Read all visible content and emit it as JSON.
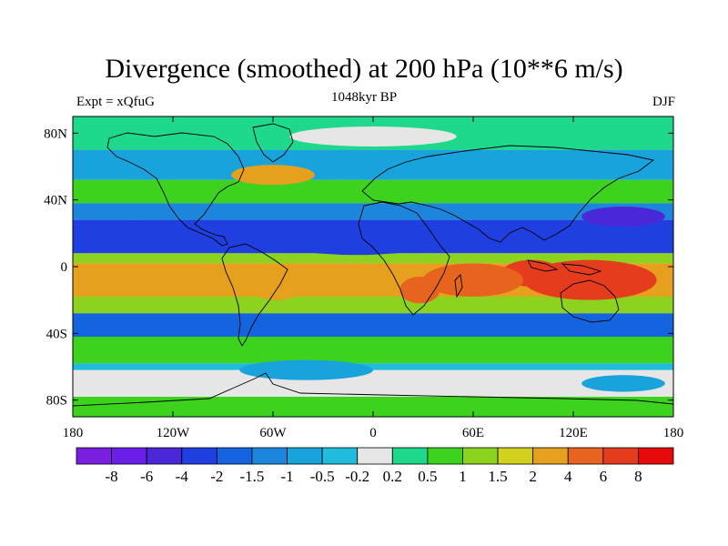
{
  "chart_data": {
    "type": "heatmap",
    "title": "Divergence (smoothed) at 200 hPa (10**6 m/s)",
    "subtitle_left": "Expt = xQfuG",
    "subtitle_center": "1048kyr BP",
    "subtitle_right": "DJF",
    "x_ticks": [
      "180",
      "120W",
      "60W",
      "0",
      "60E",
      "120E",
      "180"
    ],
    "y_ticks": [
      "80N",
      "40N",
      "0",
      "40S",
      "80S"
    ],
    "x_range": [
      -180,
      180
    ],
    "y_range": [
      -90,
      90
    ],
    "colorbar_labels": [
      "-8",
      "-6",
      "-4",
      "-2",
      "-1.5",
      "-1",
      "-0.5",
      "-0.2",
      "0.2",
      "0.5",
      "1",
      "1.5",
      "2",
      "4",
      "6",
      "8"
    ],
    "colorbar_colors": [
      "#7a1ee0",
      "#6a1ee8",
      "#4a28d8",
      "#1f3fe0",
      "#1464e0",
      "#1c86dc",
      "#19a3dc",
      "#1fbcdc",
      "#e6e6e6",
      "#1ed98c",
      "#3cd21e",
      "#8cd21e",
      "#d2d21e",
      "#e6a01e",
      "#e6641e",
      "#e63c1e",
      "#e60a0a"
    ],
    "field_bands": [
      {
        "lat_range": [
          70,
          90
        ],
        "level": 0.3
      },
      {
        "lat_range": [
          52,
          70
        ],
        "level": -0.6
      },
      {
        "lat_range": [
          38,
          52
        ],
        "level": 0.8
      },
      {
        "lat_range": [
          28,
          38
        ],
        "level": -1.2
      },
      {
        "lat_range": [
          8,
          28
        ],
        "level": -3
      },
      {
        "lat_range": [
          2,
          8
        ],
        "level": 1
      },
      {
        "lat_range": [
          -18,
          2
        ],
        "level": 3
      },
      {
        "lat_range": [
          -28,
          -18
        ],
        "level": 1.2
      },
      {
        "lat_range": [
          -42,
          -28
        ],
        "level": -1.8
      },
      {
        "lat_range": [
          -58,
          -42
        ],
        "level": 0.8
      },
      {
        "lat_range": [
          -62,
          -58
        ],
        "level": -0.5
      },
      {
        "lat_range": [
          -78,
          -62
        ],
        "level": 0.1
      },
      {
        "lat_range": [
          -90,
          -78
        ],
        "level": 0.6
      }
    ],
    "field_blobs": [
      {
        "lon": 130,
        "lat": -8,
        "rx": 40,
        "ry": 12,
        "level": 7
      },
      {
        "lon": 95,
        "lat": -4,
        "rx": 18,
        "ry": 8,
        "level": 6
      },
      {
        "lon": 60,
        "lat": -8,
        "rx": 30,
        "ry": 10,
        "level": 4
      },
      {
        "lon": 28,
        "lat": -14,
        "rx": 12,
        "ry": 8,
        "level": 4
      },
      {
        "lon": -58,
        "lat": -10,
        "rx": 18,
        "ry": 10,
        "level": 3
      },
      {
        "lon": -10,
        "lat": 16,
        "rx": 50,
        "ry": 9,
        "level": -3
      },
      {
        "lon": 150,
        "lat": 30,
        "rx": 25,
        "ry": 6,
        "level": -5
      },
      {
        "lon": -130,
        "lat": 20,
        "rx": 30,
        "ry": 6,
        "level": -4
      },
      {
        "lon": -60,
        "lat": 55,
        "rx": 25,
        "ry": 6,
        "level": 2
      },
      {
        "lon": -40,
        "lat": -62,
        "rx": 40,
        "ry": 6,
        "level": -1
      },
      {
        "lon": 150,
        "lat": -70,
        "rx": 25,
        "ry": 5,
        "level": -1
      },
      {
        "lon": 0,
        "lat": 78,
        "rx": 50,
        "ry": 6,
        "level": 0
      }
    ]
  }
}
